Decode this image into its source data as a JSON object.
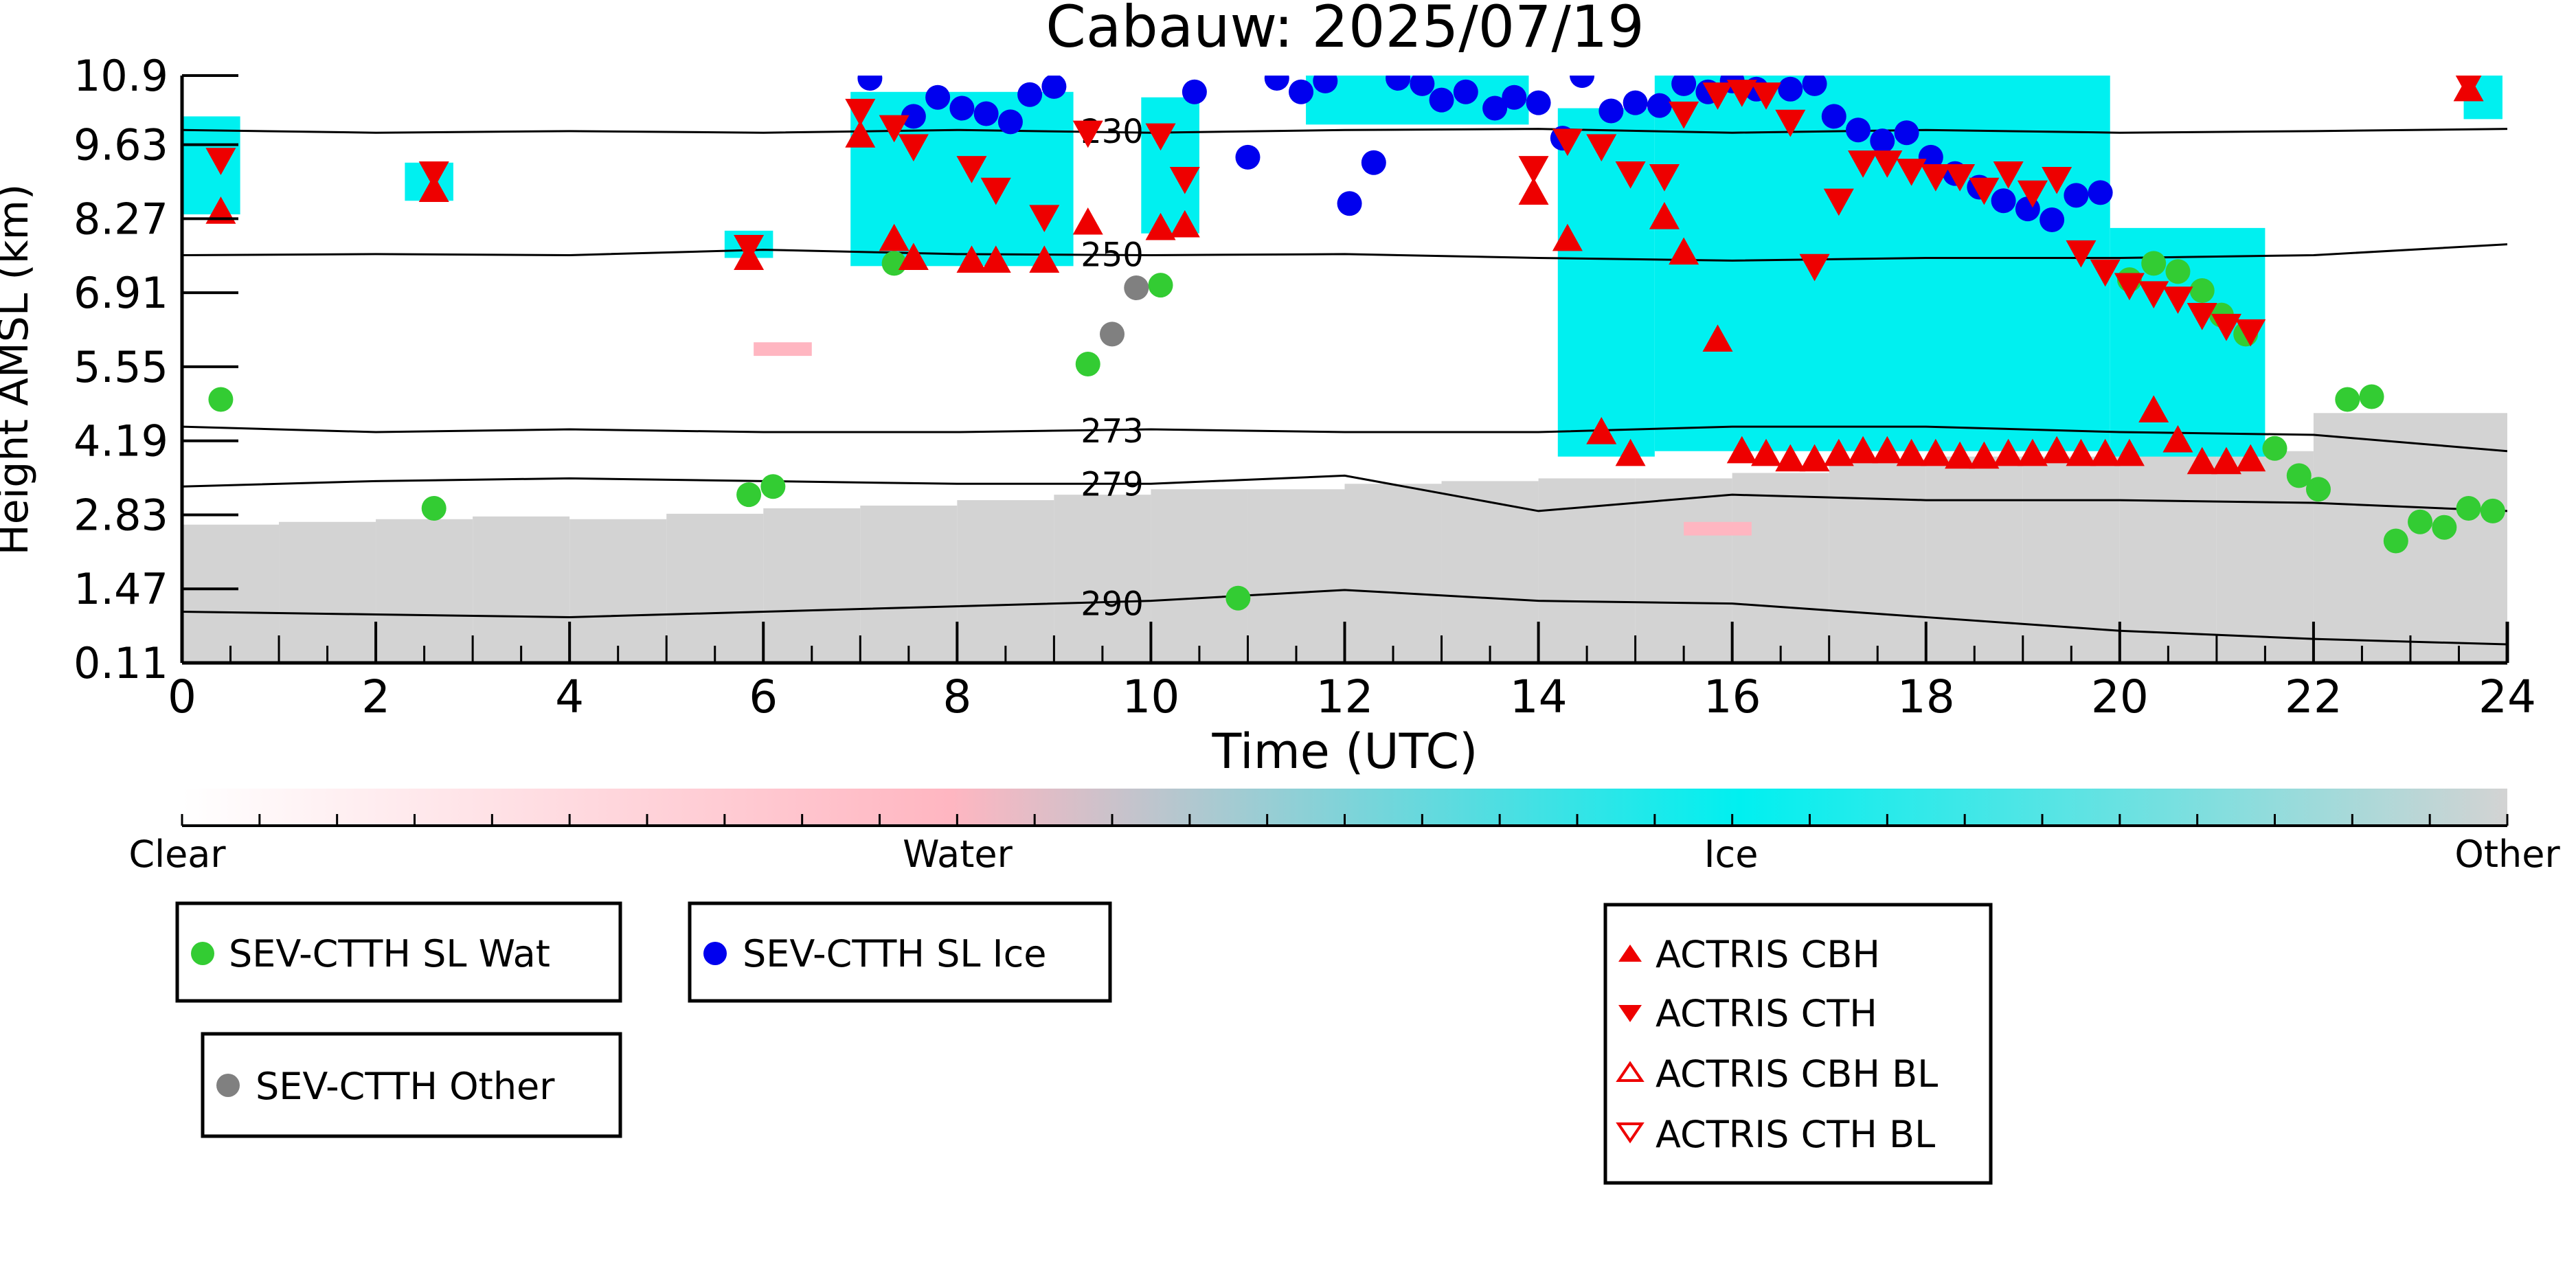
{
  "chart_data": {
    "type": "scatter",
    "title": "Cabauw: 2025/07/19",
    "xlabel": "Time (UTC)",
    "ylabel": "Height AMSL (km)",
    "xlim": [
      0,
      24
    ],
    "ylim": [
      0.11,
      10.9
    ],
    "xticks": [
      "0",
      "2",
      "4",
      "6",
      "8",
      "10",
      "12",
      "14",
      "16",
      "18",
      "20",
      "22",
      "24"
    ],
    "yticks": [
      "0.11",
      "1.47",
      "2.83",
      "4.19",
      "5.55",
      "6.91",
      "8.27",
      "9.63",
      "10.9"
    ],
    "colorbar": {
      "labels": [
        "Clear",
        "Water",
        "Ice",
        "Other"
      ],
      "colors": [
        "#ffffff",
        "#ffb6c1",
        "#00f0f0",
        "#d3d3d3"
      ]
    },
    "contours": [
      {
        "label": "230",
        "y": [
          9.9,
          9.85,
          9.88,
          9.85,
          9.9,
          9.85,
          9.9,
          9.92,
          9.85,
          9.9,
          9.85,
          9.88,
          9.92
        ]
      },
      {
        "label": "250",
        "y": [
          7.6,
          7.62,
          7.6,
          7.7,
          7.62,
          7.6,
          7.62,
          7.55,
          7.5,
          7.55,
          7.55,
          7.6,
          7.8
        ]
      },
      {
        "label": "273",
        "y": [
          4.45,
          4.35,
          4.4,
          4.35,
          4.35,
          4.4,
          4.35,
          4.35,
          4.45,
          4.45,
          4.35,
          4.3,
          4.0
        ]
      },
      {
        "label": "279",
        "y": [
          3.35,
          3.45,
          3.5,
          3.45,
          3.4,
          3.4,
          3.55,
          2.9,
          3.2,
          3.1,
          3.1,
          3.05,
          2.9
        ]
      },
      {
        "label": "290",
        "y": [
          1.05,
          1.0,
          0.95,
          1.05,
          1.15,
          1.25,
          1.45,
          1.25,
          1.2,
          0.95,
          0.7,
          0.55,
          0.45
        ]
      }
    ],
    "series": [
      {
        "name": "SEV-CTTH SL Wat",
        "color": "#33cc33",
        "marker": "circle",
        "x": [
          0.4,
          2.6,
          5.85,
          6.1,
          7.35,
          9.35,
          10.1,
          10.9,
          20.1,
          20.35,
          20.6,
          20.85,
          21.05,
          21.3,
          21.6,
          21.85,
          22.05,
          22.35,
          22.6,
          22.85,
          23.1,
          23.35,
          23.6,
          23.85
        ],
        "y": [
          4.95,
          2.95,
          3.2,
          3.35,
          7.45,
          5.6,
          7.05,
          1.3,
          7.15,
          7.45,
          7.3,
          6.95,
          6.5,
          6.15,
          4.05,
          3.55,
          3.3,
          4.95,
          5.0,
          2.35,
          2.7,
          2.6,
          2.95,
          2.9
        ]
      },
      {
        "name": "SEV-CTTH SL Ice",
        "color": "#0000ee",
        "marker": "circle",
        "x": [
          7.1,
          7.55,
          7.8,
          8.05,
          8.3,
          8.55,
          8.75,
          9.0,
          10.45,
          11.0,
          11.3,
          11.55,
          11.8,
          12.05,
          12.3,
          12.55,
          12.8,
          13.0,
          13.25,
          13.55,
          13.75,
          14.0,
          14.25,
          14.45,
          14.75,
          15.0,
          15.25,
          15.5,
          15.75,
          16.0,
          16.25,
          16.6,
          16.85,
          17.05,
          17.3,
          17.55,
          17.8,
          18.05,
          18.3,
          18.55,
          18.8,
          19.05,
          19.3,
          19.55,
          19.8
        ],
        "y": [
          10.85,
          10.15,
          10.5,
          10.3,
          10.2,
          10.05,
          10.55,
          10.7,
          10.6,
          9.4,
          10.85,
          10.6,
          10.8,
          8.55,
          9.3,
          10.85,
          10.75,
          10.45,
          10.6,
          10.3,
          10.5,
          10.4,
          9.75,
          10.9,
          10.25,
          10.4,
          10.35,
          10.75,
          10.6,
          10.8,
          10.65,
          10.65,
          10.75,
          10.15,
          9.9,
          9.7,
          9.85,
          9.4,
          9.1,
          8.85,
          8.6,
          8.45,
          8.25,
          8.7,
          8.75
        ]
      },
      {
        "name": "SEV-CTTH Other",
        "color": "#808080",
        "marker": "circle",
        "x": [
          9.6,
          9.85
        ],
        "y": [
          6.15,
          7.0
        ]
      },
      {
        "name": "ACTRIS CBH",
        "color": "#ee0000",
        "marker": "triangle-up",
        "x": [
          0.4,
          2.6,
          5.85,
          7.0,
          7.35,
          7.55,
          8.15,
          8.4,
          8.9,
          9.35,
          10.1,
          10.35,
          13.95,
          14.3,
          14.65,
          14.95,
          15.3,
          15.5,
          15.85,
          16.1,
          16.35,
          16.6,
          16.85,
          17.1,
          17.35,
          17.6,
          17.85,
          18.1,
          18.35,
          18.6,
          18.85,
          19.1,
          19.35,
          19.6,
          19.85,
          20.1,
          20.35,
          20.6,
          20.85,
          21.1,
          21.35,
          23.6
        ],
        "y": [
          8.4,
          8.8,
          7.55,
          9.8,
          7.9,
          7.55,
          7.5,
          7.5,
          7.5,
          8.2,
          8.1,
          8.15,
          8.75,
          7.9,
          4.35,
          3.95,
          8.3,
          7.65,
          6.05,
          4.0,
          3.95,
          3.85,
          3.85,
          3.95,
          4.0,
          4.0,
          3.95,
          3.95,
          3.9,
          3.9,
          3.95,
          3.95,
          4.0,
          3.95,
          3.95,
          3.95,
          4.75,
          4.2,
          3.8,
          3.8,
          3.85,
          10.65
        ]
      },
      {
        "name": "ACTRIS CTH",
        "color": "#ee0000",
        "marker": "triangle-down",
        "x": [
          0.4,
          2.6,
          5.85,
          7.0,
          7.35,
          7.55,
          8.15,
          8.4,
          8.9,
          9.35,
          10.1,
          10.35,
          13.95,
          14.3,
          14.65,
          14.95,
          15.3,
          15.5,
          15.85,
          16.1,
          16.35,
          16.6,
          16.85,
          17.1,
          17.35,
          17.6,
          17.85,
          18.1,
          18.35,
          18.6,
          18.85,
          19.1,
          19.35,
          19.6,
          19.85,
          20.1,
          20.35,
          20.6,
          20.85,
          21.1,
          21.35,
          23.6
        ],
        "y": [
          9.35,
          9.1,
          7.75,
          10.25,
          9.95,
          9.6,
          9.2,
          8.8,
          8.3,
          9.85,
          9.8,
          9.0,
          9.2,
          9.7,
          9.6,
          9.1,
          9.05,
          10.2,
          10.55,
          10.6,
          10.55,
          10.05,
          7.4,
          8.6,
          9.3,
          9.3,
          9.15,
          9.05,
          9.05,
          8.8,
          9.1,
          8.75,
          9.0,
          7.65,
          7.3,
          7.05,
          6.9,
          6.8,
          6.5,
          6.3,
          6.2,
          10.75
        ]
      },
      {
        "name": "ACTRIS CBH BL",
        "color": "#ee0000",
        "marker": "triangle-up-open",
        "x": [],
        "y": []
      },
      {
        "name": "ACTRIS CTH BL",
        "color": "#ee0000",
        "marker": "triangle-down-open",
        "x": [],
        "y": []
      }
    ]
  }
}
